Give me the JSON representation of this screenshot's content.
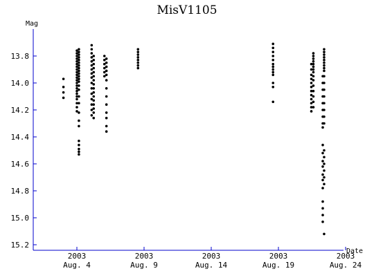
{
  "chart_data": {
    "type": "scatter",
    "title": "MisV1105",
    "ylabel": "Mag",
    "xlabel": "Date",
    "ylim": [
      13.6,
      15.24
    ],
    "y_inverted": true,
    "xlim": [
      1.5,
      24.0
    ],
    "y_ticks": [
      "13.8",
      "14.0",
      "14.2",
      "14.4",
      "14.6",
      "14.8",
      "15.0",
      "15.2"
    ],
    "x_ticks": [
      {
        "day": 4,
        "year": "2003",
        "label": "Aug. 4"
      },
      {
        "day": 9,
        "year": "2003",
        "label": "Aug. 9"
      },
      {
        "day": 14,
        "year": "2003",
        "label": "Aug. 14"
      },
      {
        "day": 19,
        "year": "2003",
        "label": "Aug. 19"
      },
      {
        "day": 24,
        "year": "2003",
        "label": "Aug. 24"
      }
    ],
    "grid": false,
    "series": [
      {
        "clusters": [
          {
            "x": 3.0,
            "mags": [
              13.97,
              14.03,
              14.07,
              14.11
            ]
          },
          {
            "x": 4.0,
            "mags": [
              13.76,
              13.78,
              13.8,
              13.82,
              13.84,
              13.86,
              13.88,
              13.9,
              13.92,
              13.94,
              13.96,
              13.98,
              14.0,
              14.02,
              14.04,
              14.06,
              14.08,
              14.1,
              14.12,
              14.15,
              14.18,
              14.21
            ]
          },
          {
            "x": 4.15,
            "mags": [
              13.75,
              13.77,
              13.79,
              13.81,
              13.83,
              13.85,
              13.87,
              13.89,
              13.91,
              13.93,
              13.95,
              13.97,
              13.99,
              14.02,
              14.05,
              14.1,
              14.15,
              14.22,
              14.28,
              14.32,
              14.43,
              14.46,
              14.49,
              14.51,
              14.53
            ]
          },
          {
            "x": 5.1,
            "mags": [
              13.72,
              13.75,
              13.78,
              13.81,
              13.84,
              13.87,
              13.9,
              13.93,
              13.96,
              14.0,
              14.04,
              14.08,
              14.12,
              14.16,
              14.2,
              14.24
            ]
          },
          {
            "x": 5.25,
            "mags": [
              13.8,
              13.83,
              13.86,
              13.89,
              13.92,
              13.95,
              13.98,
              14.01,
              14.04,
              14.07,
              14.1,
              14.13,
              14.16,
              14.19,
              14.22,
              14.26
            ]
          },
          {
            "x": 6.05,
            "mags": [
              13.8,
              13.83,
              13.86,
              13.89,
              13.92,
              13.95
            ]
          },
          {
            "x": 6.2,
            "mags": [
              13.82,
              13.85,
              13.88,
              13.91,
              13.94,
              13.98,
              14.04,
              14.1,
              14.16,
              14.22,
              14.26,
              14.32,
              14.36
            ]
          },
          {
            "x": 8.55,
            "mags": [
              13.75,
              13.77,
              13.79,
              13.81,
              13.83,
              13.85,
              13.87,
              13.89
            ]
          },
          {
            "x": 18.6,
            "mags": [
              13.71,
              13.74,
              13.77,
              13.8,
              13.83,
              13.86,
              13.88,
              13.9,
              13.92,
              13.94,
              14.0,
              14.03,
              14.14
            ]
          },
          {
            "x": 21.45,
            "mags": [
              13.86,
              13.9,
              13.94,
              13.97,
              14.0,
              14.03,
              14.06,
              14.09,
              14.12,
              14.15,
              14.18,
              14.21
            ]
          },
          {
            "x": 21.6,
            "mags": [
              13.78,
              13.8,
              13.82,
              13.84,
              13.86,
              13.88,
              13.9,
              13.92,
              13.95,
              13.98,
              14.02,
              14.06,
              14.1,
              14.14,
              14.18
            ]
          },
          {
            "x": 22.3,
            "mags": [
              13.95,
              14.0,
              14.05,
              14.1,
              14.15,
              14.2,
              14.25,
              14.3,
              14.33,
              14.46,
              14.52,
              14.58,
              14.62,
              14.68,
              14.72,
              14.78,
              14.88,
              14.93,
              14.98,
              15.03
            ]
          },
          {
            "x": 22.4,
            "mags": [
              13.75,
              13.77,
              13.79,
              13.81,
              13.83,
              13.85,
              13.87,
              13.89,
              13.91,
              13.95,
              14.0,
              14.05,
              14.1,
              14.15,
              14.2,
              14.25,
              14.3,
              14.5,
              14.55,
              14.6,
              14.65,
              14.7,
              14.75,
              15.12
            ]
          }
        ]
      }
    ]
  }
}
